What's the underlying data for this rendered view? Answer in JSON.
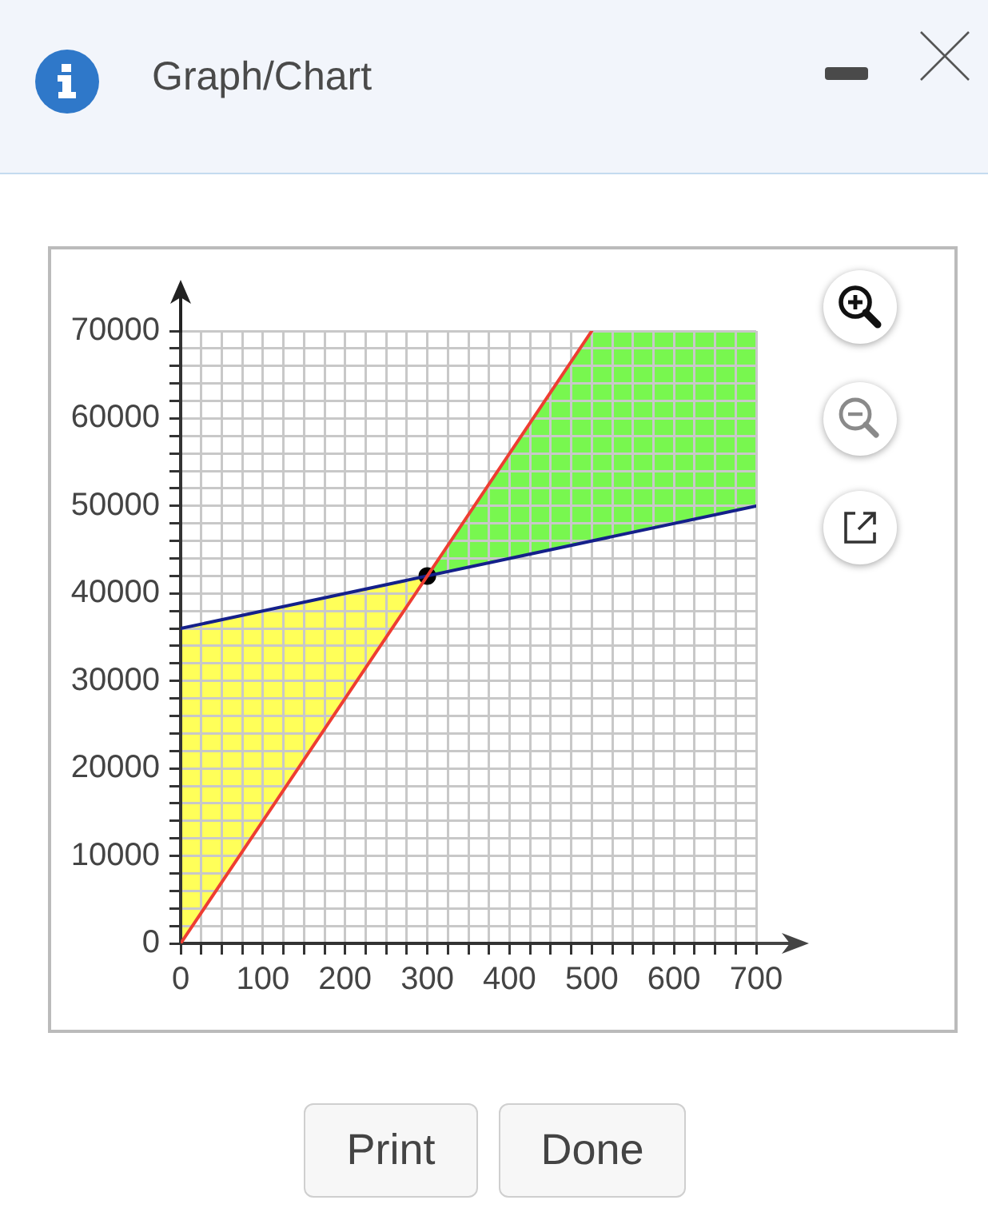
{
  "chart_data": {
    "type": "line",
    "title": "Graph/Chart",
    "xlim": [
      0,
      700
    ],
    "ylim": [
      0,
      70000
    ],
    "xticks": [
      0,
      {
        "value": 25,
        "label": null
      },
      {
        "value": 50,
        "label": null
      },
      {
        "value": 75,
        "label": null
      },
      100,
      {
        "value": 125,
        "label": null
      },
      {
        "value": 150,
        "label": null
      },
      {
        "value": 175,
        "label": null
      },
      200,
      {
        "value": 225,
        "label": null
      },
      {
        "value": 250,
        "label": null
      },
      {
        "value": 275,
        "label": null
      },
      300,
      {
        "value": 325,
        "label": null
      },
      {
        "value": 350,
        "label": null
      },
      {
        "value": 375,
        "label": null
      },
      400,
      {
        "value": 425,
        "label": null
      },
      {
        "value": 450,
        "label": null
      },
      {
        "value": 475,
        "label": null
      },
      500,
      {
        "value": 525,
        "label": null
      },
      {
        "value": 550,
        "label": null
      },
      {
        "value": 575,
        "label": null
      },
      600,
      {
        "value": 625,
        "label": null
      },
      {
        "value": 650,
        "label": null
      },
      {
        "value": 675,
        "label": null
      },
      700
    ],
    "yticks": [
      0,
      {
        "value": 2000,
        "label": null
      },
      {
        "value": 4000,
        "label": null
      },
      {
        "value": 6000,
        "label": null
      },
      {
        "value": 8000,
        "label": null
      },
      10000,
      {
        "value": 12000,
        "label": null
      },
      {
        "value": 14000,
        "label": null
      },
      {
        "value": 16000,
        "label": null
      },
      {
        "value": 18000,
        "label": null
      },
      20000,
      {
        "value": 22000,
        "label": null
      },
      {
        "value": 24000,
        "label": null
      },
      {
        "value": 26000,
        "label": null
      },
      {
        "value": 28000,
        "label": null
      },
      30000,
      {
        "value": 32000,
        "label": null
      },
      {
        "value": 34000,
        "label": null
      },
      {
        "value": 36000,
        "label": null
      },
      {
        "value": 38000,
        "label": null
      },
      40000,
      {
        "value": 42000,
        "label": null
      },
      {
        "value": 44000,
        "label": null
      },
      {
        "value": 46000,
        "label": null
      },
      {
        "value": 48000,
        "label": null
      },
      50000,
      {
        "value": 52000,
        "label": null
      },
      {
        "value": 54000,
        "label": null
      },
      {
        "value": 56000,
        "label": null
      },
      {
        "value": 58000,
        "label": null
      },
      60000,
      {
        "value": 62000,
        "label": null
      },
      {
        "value": 64000,
        "label": null
      },
      {
        "value": 66000,
        "label": null
      },
      {
        "value": 68000,
        "label": null
      },
      70000
    ],
    "grid": true,
    "series": [
      {
        "type": "area",
        "color": "#ffff59",
        "x": [
          0,
          300
        ],
        "values": [
          null,
          null
        ],
        "lower": [
          0,
          42000
        ],
        "upper": [
          36000,
          42000
        ]
      },
      {
        "type": "area",
        "color": "#78f74f",
        "x": [
          300,
          500,
          700
        ],
        "values": [
          null,
          null,
          null
        ],
        "lower": [
          42000,
          46000,
          50000
        ],
        "upper": [
          42000,
          70000,
          70000
        ]
      },
      {
        "type": "line",
        "color": "#ee3d32",
        "x": [
          0,
          500
        ],
        "values": [
          0,
          70000
        ]
      },
      {
        "type": "line",
        "color": "#14208a",
        "x": [
          0,
          700
        ],
        "values": [
          36000,
          50000
        ]
      },
      {
        "type": "scatter",
        "color": "#000000",
        "marker": "circle",
        "x": [
          300
        ],
        "values": [
          42000
        ]
      }
    ],
    "annotations": [
      "Print",
      "Done"
    ]
  }
}
